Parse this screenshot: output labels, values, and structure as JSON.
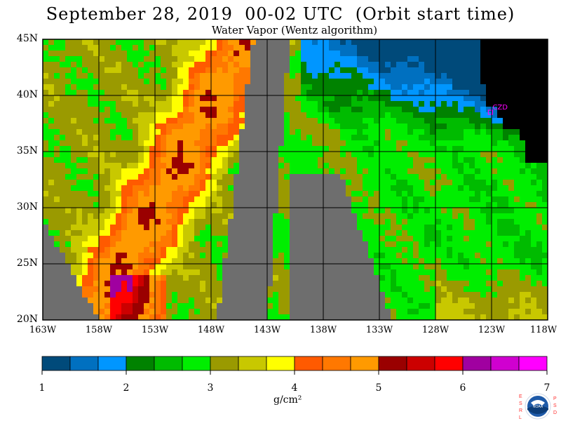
{
  "title": "September 28, 2019  00-02 UTC  (Orbit start time)",
  "subtitle": "Water Vapor (Wentz algorithm)",
  "map": {
    "lat_labels": [
      "45N",
      "40N",
      "35N",
      "30N",
      "25N",
      "20N"
    ],
    "lon_labels": [
      "163W",
      "158W",
      "153W",
      "148W",
      "143W",
      "138W",
      "133W",
      "128W",
      "123W",
      "118W"
    ],
    "lat_range": [
      20,
      45
    ],
    "lon_range": [
      -163,
      -118
    ],
    "station_marker": "CZD",
    "missing_data_color": "#6e6e6e",
    "land_color": "#000000",
    "station_color": "#ff00ff"
  },
  "colorbar": {
    "ticks": [
      "1",
      "2",
      "3",
      "4",
      "5",
      "6",
      "7"
    ],
    "units": "g/cm²",
    "colors": [
      "#004a7a",
      "#0070c0",
      "#0096ff",
      "#008200",
      "#00bb00",
      "#00ee00",
      "#9a9a00",
      "#c8c800",
      "#ffff00",
      "#ff5a00",
      "#ff7800",
      "#ff9a00",
      "#9a0000",
      "#cc0000",
      "#ff0000",
      "#a000a0",
      "#d000d0",
      "#ff00ff"
    ]
  },
  "logo": {
    "left_letters": "ESRL",
    "right_letters": "PSD",
    "center_text": "NOAA",
    "colors": {
      "ring": "#ffffff",
      "sky": "#1e5aa8",
      "sea": "#0b3c78",
      "letters": "#ff3333"
    }
  }
}
